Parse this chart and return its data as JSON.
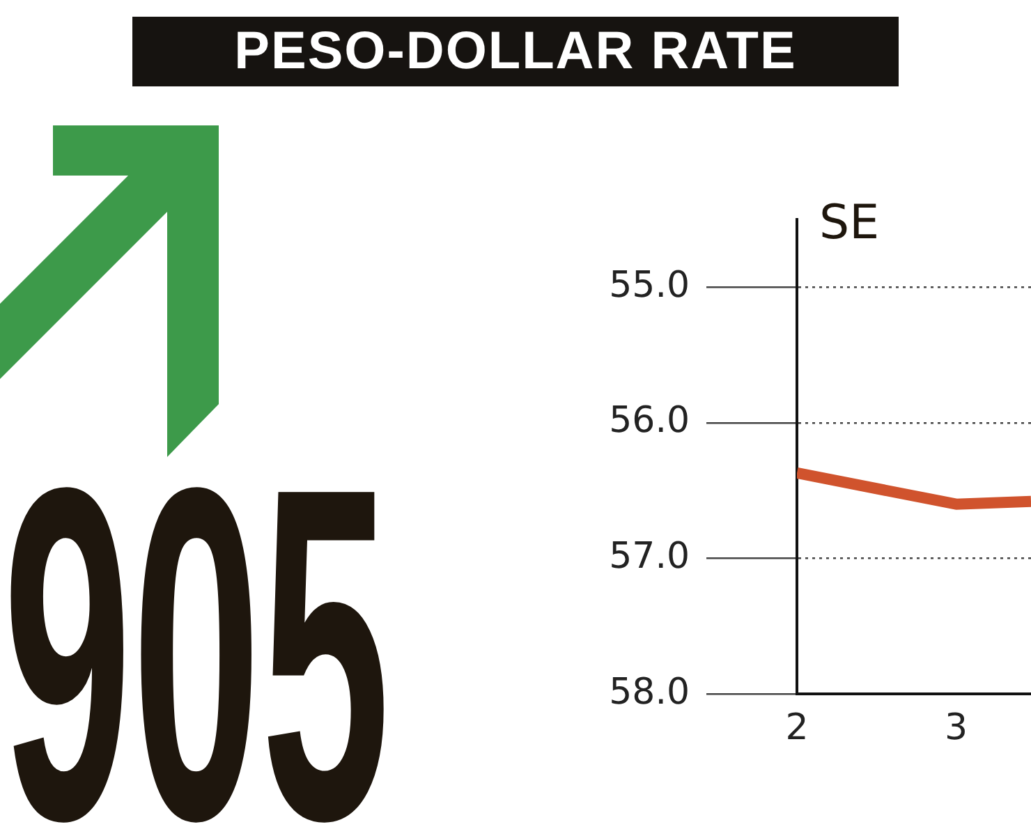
{
  "chart_data": {
    "type": "line",
    "title": "PESO-DOLLAR RATE",
    "annotations": [
      "905",
      "SE"
    ],
    "x": [
      2,
      3,
      3.47
    ],
    "series": [
      {
        "color": "#d0532d",
        "values": [
          56.37,
          56.6,
          56.58
        ]
      }
    ],
    "xlim": [
      2,
      3.47
    ],
    "xticks": [
      2,
      3
    ],
    "ylim": [
      58,
      54.5
    ],
    "yticks": [
      {
        "value": 55,
        "label": "55.0"
      },
      {
        "value": 56,
        "label": "56.0"
      },
      {
        "value": 57,
        "label": "57.0"
      },
      {
        "value": 58,
        "label": "58.0"
      }
    ],
    "grid": "y",
    "legend": false,
    "marker": "none",
    "line_style": "solid"
  }
}
